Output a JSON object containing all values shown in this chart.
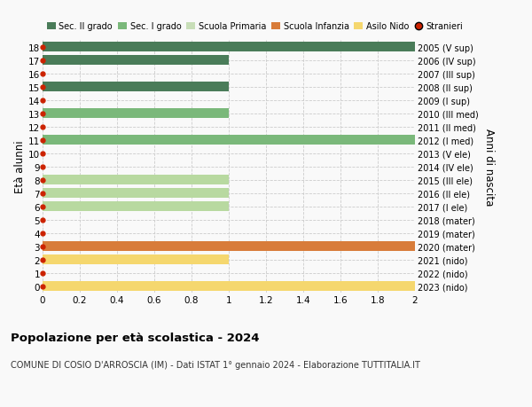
{
  "ages": [
    18,
    17,
    16,
    15,
    14,
    13,
    12,
    11,
    10,
    9,
    8,
    7,
    6,
    5,
    4,
    3,
    2,
    1,
    0
  ],
  "right_labels": [
    "2005 (V sup)",
    "2006 (IV sup)",
    "2007 (III sup)",
    "2008 (II sup)",
    "2009 (I sup)",
    "2010 (III med)",
    "2011 (II med)",
    "2012 (I med)",
    "2013 (V ele)",
    "2014 (IV ele)",
    "2015 (III ele)",
    "2016 (II ele)",
    "2017 (I ele)",
    "2018 (mater)",
    "2019 (mater)",
    "2020 (mater)",
    "2021 (nido)",
    "2022 (nido)",
    "2023 (nido)"
  ],
  "bar_values": [
    2.0,
    1.0,
    0.0,
    1.0,
    0.0,
    1.0,
    0.0,
    2.0,
    0.0,
    0.0,
    1.0,
    1.0,
    1.0,
    0.0,
    0.0,
    2.0,
    1.0,
    0.0,
    2.0
  ],
  "bar_colors": [
    "#4a7c59",
    "#4a7c59",
    "#4a7c59",
    "#4a7c59",
    "#4a7c59",
    "#7ab87a",
    "#7ab87a",
    "#7ab87a",
    "#b8d9a0",
    "#b8d9a0",
    "#b8d9a0",
    "#b8d9a0",
    "#b8d9a0",
    "#d4eac0",
    "#d4eac0",
    "#d87c3a",
    "#f5d76e",
    "#f5d76e",
    "#f5d76e"
  ],
  "xlim": [
    0,
    2.0
  ],
  "xticks": [
    0,
    0.2,
    0.4,
    0.6,
    0.8,
    1.0,
    1.2,
    1.4,
    1.6,
    1.8,
    2.0
  ],
  "ylabel_left": "Età alunni",
  "ylabel_right": "Anni di nascita",
  "title": "Popolazione per età scolastica - 2024",
  "subtitle": "COMUNE DI COSIO D'ARROSCIA (IM) - Dati ISTAT 1° gennaio 2024 - Elaborazione TUTTITALIA.IT",
  "legend_labels": [
    "Sec. II grado",
    "Sec. I grado",
    "Scuola Primaria",
    "Scuola Infanzia",
    "Asilo Nido",
    "Stranieri"
  ],
  "legend_colors": [
    "#4a7c59",
    "#7ab87a",
    "#c8deb8",
    "#d87c3a",
    "#f5d76e",
    "#cc2200"
  ],
  "bg_color": "#f9f9f9",
  "grid_color": "#cccccc",
  "bar_height": 0.72,
  "dot_color": "#cc2200",
  "dot_size": 3.5
}
